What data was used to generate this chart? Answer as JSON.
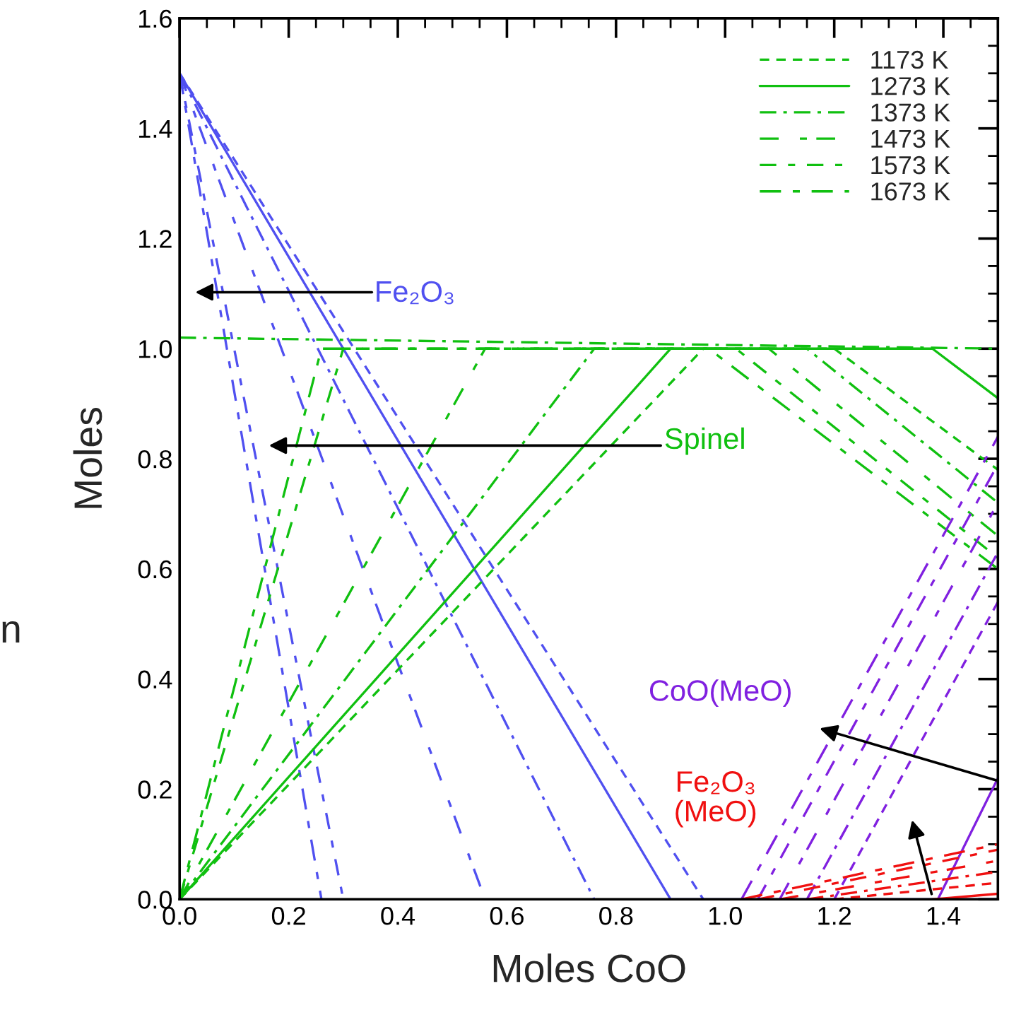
{
  "chart_data": {
    "type": "line",
    "xlabel": "Moles CoO",
    "ylabel": "Moles",
    "xlim": [
      0,
      1.5
    ],
    "ylim": [
      0,
      1.6
    ],
    "xticks": [
      {
        "value": 0,
        "label": "0.0"
      },
      {
        "value": 0.2,
        "label": "0.2"
      },
      {
        "value": 0.4,
        "label": "0.4"
      },
      {
        "value": 0.6,
        "label": "0.6"
      },
      {
        "value": 0.8,
        "label": "0.8"
      },
      {
        "value": 1.0,
        "label": "1.0"
      },
      {
        "value": 1.2,
        "label": "1.2"
      },
      {
        "value": 1.4,
        "label": "1.4"
      }
    ],
    "yticks": [
      {
        "value": 0,
        "label": "0.0"
      },
      {
        "value": 0.2,
        "label": "0.2"
      },
      {
        "value": 0.4,
        "label": "0.4"
      },
      {
        "value": 0.6,
        "label": "0.6"
      },
      {
        "value": 0.8,
        "label": "0.8"
      },
      {
        "value": 1.0,
        "label": "1.0"
      },
      {
        "value": 1.2,
        "label": "1.2"
      },
      {
        "value": 1.4,
        "label": "1.4"
      },
      {
        "value": 1.6,
        "label": "1.6"
      }
    ],
    "grid": false,
    "legend": "top right",
    "series": [
      {
        "color": "#5050f0",
        "line_style": "dashed",
        "x": [
          0,
          0.96
        ],
        "values": [
          1.5,
          0
        ]
      },
      {
        "color": "#5050f0",
        "line_style": "solid",
        "x": [
          0,
          0.9,
          1.5
        ],
        "values": [
          1.5,
          0,
          0
        ]
      },
      {
        "color": "#5050f0",
        "line_style": "dashdot",
        "x": [
          0,
          0.76
        ],
        "values": [
          1.5,
          0
        ]
      },
      {
        "color": "#5050f0",
        "line_style": "longdash",
        "x": [
          0,
          0.56
        ],
        "values": [
          1.5,
          0
        ]
      },
      {
        "color": "#5050f0",
        "line_style": "longdash2",
        "x": [
          0,
          0.3
        ],
        "values": [
          1.5,
          0
        ]
      },
      {
        "color": "#5050f0",
        "line_style": "longdash3",
        "x": [
          0,
          0.26
        ],
        "values": [
          1.5,
          0
        ]
      },
      {
        "name": "1173 K",
        "color": "#10c010",
        "line_style": "dashed",
        "x": [
          0,
          0.96,
          1.2,
          1.5
        ],
        "values": [
          0,
          1.0,
          1.0,
          0.78
        ]
      },
      {
        "name": "1273 K",
        "color": "#10c010",
        "line_style": "solid",
        "x": [
          0,
          0.9,
          1.38,
          1.5
        ],
        "values": [
          0,
          1.0,
          1.0,
          0.91
        ]
      },
      {
        "name": "1373 K",
        "color": "#10c010",
        "line_style": "dashdot",
        "x": [
          0,
          0.76,
          1.15,
          1.5
        ],
        "values": [
          0,
          1.0,
          1.0,
          0.72
        ]
      },
      {
        "name": "1473 K",
        "color": "#10c010",
        "line_style": "longdash",
        "x": [
          0,
          0.56,
          1.08,
          1.5
        ],
        "values": [
          0,
          1.0,
          1.0,
          0.66
        ]
      },
      {
        "name": "1573 K",
        "color": "#10c010",
        "line_style": "longdash2",
        "x": [
          0,
          0.3,
          1.02,
          1.5
        ],
        "values": [
          0,
          1.0,
          1.0,
          0.62
        ]
      },
      {
        "name": "1673 K",
        "color": "#10c010",
        "line_style": "longdash3",
        "x": [
          0,
          0.26,
          0.97,
          1.5
        ],
        "values": [
          0,
          1.0,
          1.0,
          0.6
        ]
      },
      {
        "color": "#8020e0",
        "line_style": "dashed",
        "x": [
          1.2,
          1.5
        ],
        "values": [
          0,
          0.54
        ]
      },
      {
        "color": "#8020e0",
        "line_style": "solid",
        "x": [
          1.39,
          1.5
        ],
        "values": [
          0,
          0.22
        ]
      },
      {
        "color": "#8020e0",
        "line_style": "dashdot",
        "x": [
          1.15,
          1.5
        ],
        "values": [
          0,
          0.63
        ]
      },
      {
        "color": "#8020e0",
        "line_style": "longdash",
        "x": [
          1.1,
          1.5
        ],
        "values": [
          0,
          0.72
        ]
      },
      {
        "color": "#8020e0",
        "line_style": "longdash2",
        "x": [
          1.06,
          1.5
        ],
        "values": [
          0,
          0.79
        ]
      },
      {
        "color": "#8020e0",
        "line_style": "longdash3",
        "x": [
          1.03,
          1.5
        ],
        "values": [
          0,
          0.84
        ]
      },
      {
        "color": "#f01010",
        "line_style": "dashed",
        "x": [
          1.2,
          1.5
        ],
        "values": [
          0,
          0.03
        ]
      },
      {
        "color": "#f01010",
        "line_style": "solid",
        "x": [
          1.38,
          1.5
        ],
        "values": [
          0,
          0.01
        ]
      },
      {
        "color": "#f01010",
        "line_style": "dashdot",
        "x": [
          1.15,
          1.5
        ],
        "values": [
          0,
          0.05
        ]
      },
      {
        "color": "#f01010",
        "line_style": "longdash",
        "x": [
          1.1,
          1.5
        ],
        "values": [
          0,
          0.07
        ]
      },
      {
        "color": "#f01010",
        "line_style": "longdash2",
        "x": [
          1.06,
          1.5
        ],
        "values": [
          0,
          0.09
        ]
      },
      {
        "color": "#f01010",
        "line_style": "longdash3",
        "x": [
          1.03,
          1.5
        ],
        "values": [
          0,
          0.1
        ]
      },
      {
        "color": "#10c010",
        "line_style": "dashdot",
        "x": [
          0,
          1.5
        ],
        "values": [
          1.02,
          1.0
        ]
      }
    ],
    "annotations": [
      "Fe₂O₃",
      "Spinel",
      "CoO(MeO)",
      "Fe₂O₃\n(MeO)",
      "n"
    ]
  }
}
